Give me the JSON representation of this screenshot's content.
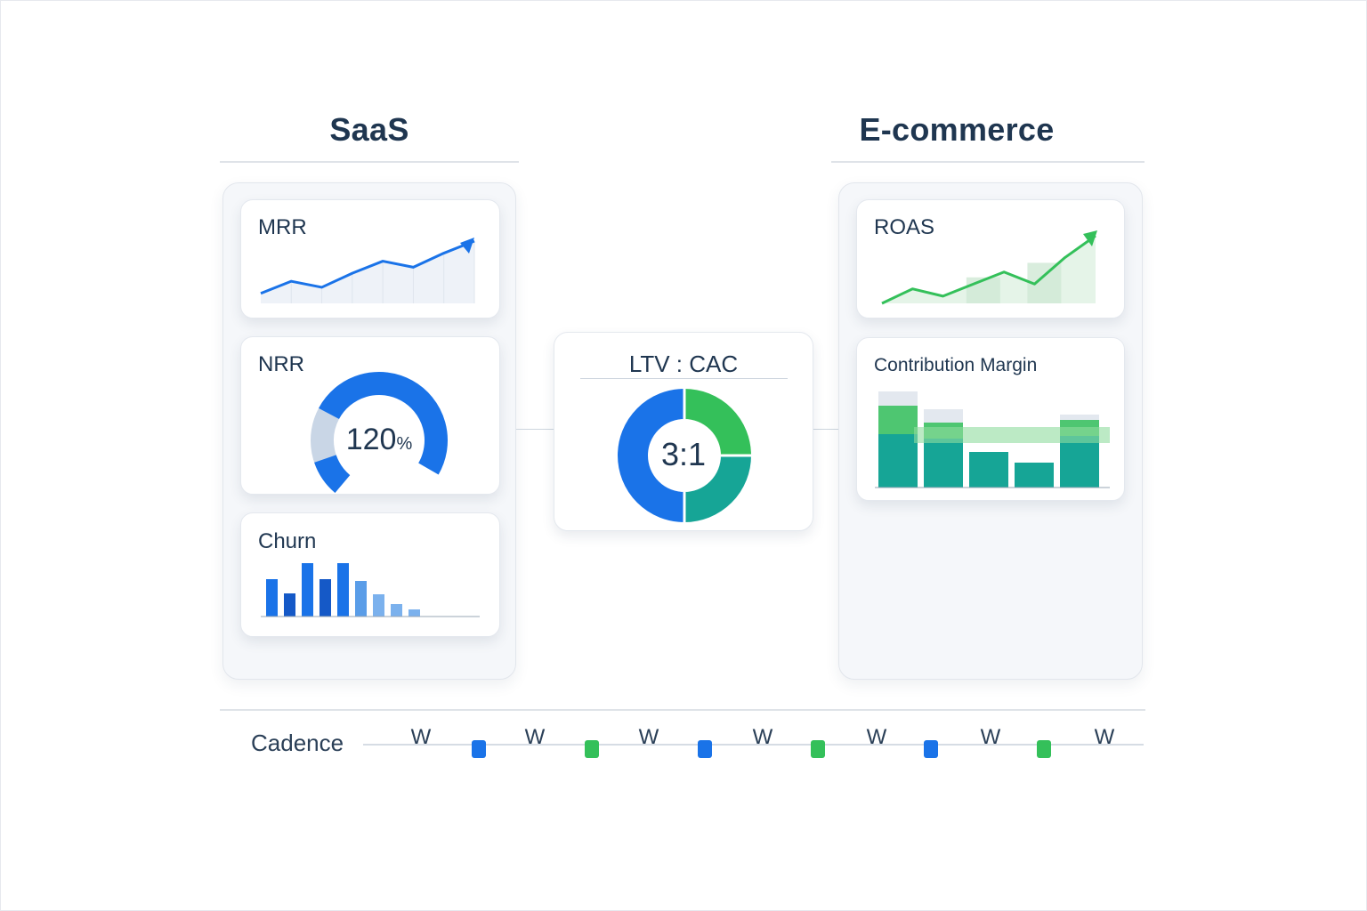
{
  "colors": {
    "blue": "#1a73e8",
    "blue_dark": "#1559c7",
    "green": "#34c05a",
    "teal": "#16a596",
    "text": "#1f3650",
    "rule": "#dfe3e8"
  },
  "saas": {
    "title": "SaaS",
    "mrr": {
      "label": "MRR",
      "values": [
        1,
        2.2,
        1.6,
        3,
        4.2,
        3.6,
        5,
        6.2
      ]
    },
    "nrr": {
      "label": "NRR",
      "value": "120",
      "unit": "%",
      "fill_fraction": 0.7
    },
    "churn": {
      "label": "Churn",
      "values": [
        42,
        26,
        60,
        42,
        60,
        40,
        25,
        14,
        8
      ]
    }
  },
  "center": {
    "title": "LTV : CAC",
    "ratio": "3:1",
    "segments": [
      {
        "share": 0.25,
        "color": "#34c05a"
      },
      {
        "share": 0.25,
        "color": "#16a596"
      },
      {
        "share": 0.5,
        "color": "#1a73e8"
      }
    ]
  },
  "ecommerce": {
    "title": "E-commerce",
    "roas": {
      "label": "ROAS",
      "values": [
        0,
        1.2,
        0.6,
        1.6,
        2.6,
        1.6,
        3.8,
        5.6
      ]
    },
    "contribution_margin": {
      "label": "Contribution Margin",
      "revenue": [
        108,
        88,
        40,
        28,
        82
      ],
      "margin": [
        60,
        55,
        40,
        28,
        58
      ]
    }
  },
  "cadence": {
    "label": "Cadence",
    "ticks": [
      "W",
      "W",
      "W",
      "W",
      "W",
      "W",
      "W"
    ],
    "markers": [
      "blue",
      "green",
      "blue",
      "green",
      "blue",
      "green"
    ]
  }
}
